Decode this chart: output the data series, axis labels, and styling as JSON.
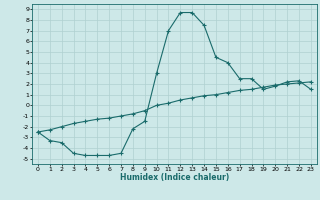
{
  "xlabel": "Humidex (Indice chaleur)",
  "bg_color": "#cde8e8",
  "grid_color": "#b0d0d0",
  "line_color": "#1a6b6b",
  "xlim": [
    -0.5,
    23.5
  ],
  "ylim": [
    -5.5,
    9.5
  ],
  "xticks": [
    0,
    1,
    2,
    3,
    4,
    5,
    6,
    7,
    8,
    9,
    10,
    11,
    12,
    13,
    14,
    15,
    16,
    17,
    18,
    19,
    20,
    21,
    22,
    23
  ],
  "yticks": [
    -5,
    -4,
    -3,
    -2,
    -1,
    0,
    1,
    2,
    3,
    4,
    5,
    6,
    7,
    8,
    9
  ],
  "line1_x": [
    0,
    1,
    2,
    3,
    4,
    5,
    6,
    7,
    8,
    9,
    10,
    11,
    12,
    13,
    14,
    15,
    16,
    17,
    18,
    19,
    20,
    21,
    22,
    23
  ],
  "line1_y": [
    -2.5,
    -3.3,
    -3.5,
    -4.5,
    -4.7,
    -4.7,
    -4.7,
    -4.5,
    -2.2,
    -1.5,
    3.0,
    7.0,
    8.7,
    8.7,
    7.5,
    4.5,
    4.0,
    2.5,
    2.5,
    1.5,
    1.8,
    2.2,
    2.3,
    1.5
  ],
  "line2_x": [
    0,
    1,
    2,
    3,
    4,
    5,
    6,
    7,
    8,
    9,
    10,
    11,
    12,
    13,
    14,
    15,
    16,
    17,
    18,
    19,
    20,
    21,
    22,
    23
  ],
  "line2_y": [
    -2.5,
    -2.3,
    -2.0,
    -1.7,
    -1.5,
    -1.3,
    -1.2,
    -1.0,
    -0.8,
    -0.5,
    0.0,
    0.2,
    0.5,
    0.7,
    0.9,
    1.0,
    1.2,
    1.4,
    1.5,
    1.7,
    1.9,
    2.0,
    2.1,
    2.2
  ]
}
